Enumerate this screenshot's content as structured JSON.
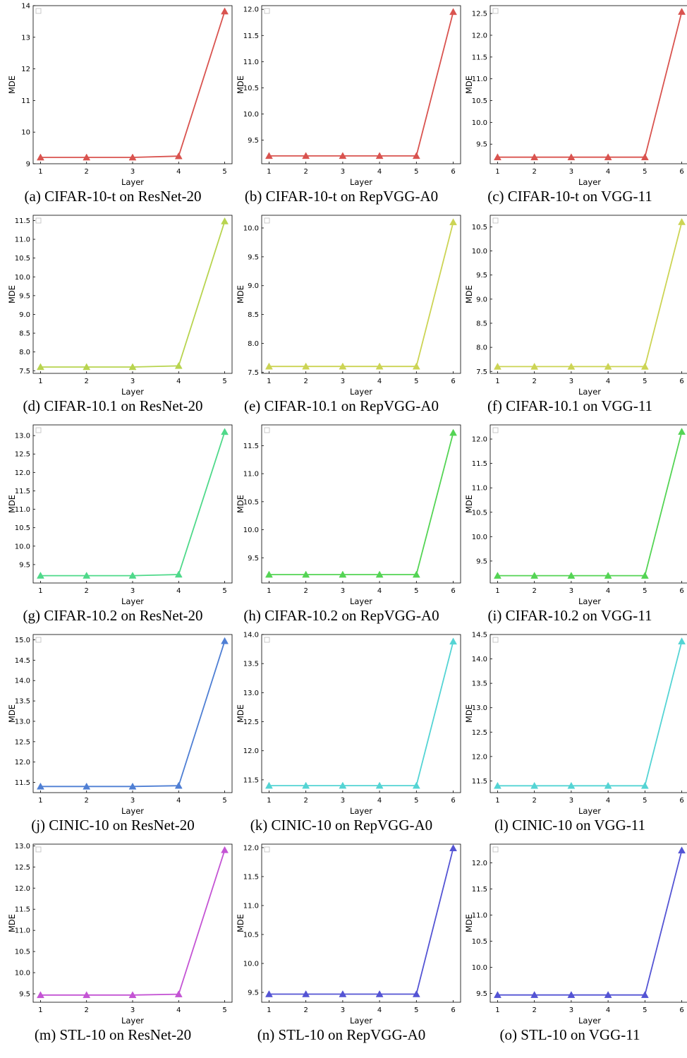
{
  "charts": [
    {
      "caption": "(a) CIFAR-10-t on ResNet-20",
      "ylabel": "MDE",
      "xlabel": "Layer",
      "color": "#d9534f",
      "chart_data": {
        "type": "line",
        "x": [
          1,
          2,
          3,
          4,
          5
        ],
        "y": [
          9.2,
          9.2,
          9.2,
          9.24,
          13.82
        ],
        "ylim": [
          9,
          14
        ],
        "yticks": [
          "9",
          "10",
          "11",
          "12",
          "13",
          "14"
        ]
      }
    },
    {
      "caption": "(b) CIFAR-10-t on RepVGG-A0",
      "ylabel": "MDE",
      "xlabel": "Layer",
      "color": "#d9534f",
      "chart_data": {
        "type": "line",
        "x": [
          1,
          2,
          3,
          4,
          5,
          6
        ],
        "y": [
          9.2,
          9.2,
          9.2,
          9.2,
          9.2,
          11.95
        ],
        "ylim": [
          9.05,
          12.07
        ],
        "yticks": [
          "9.5",
          "10.0",
          "10.5",
          "11.0",
          "11.5",
          "12.0"
        ]
      }
    },
    {
      "caption": "(c) CIFAR-10-t on VGG-11",
      "ylabel": "MDE",
      "xlabel": "Layer",
      "color": "#d9534f",
      "chart_data": {
        "type": "line",
        "x": [
          1,
          2,
          3,
          4,
          5,
          6
        ],
        "y": [
          9.2,
          9.2,
          9.2,
          9.2,
          9.2,
          12.54
        ],
        "ylim": [
          9.05,
          12.68
        ],
        "yticks": [
          "9.5",
          "10.0",
          "10.5",
          "11.0",
          "11.5",
          "12.0",
          "12.5"
        ]
      }
    },
    {
      "caption": "(d) CIFAR-10.1 on ResNet-20",
      "ylabel": "MDE",
      "xlabel": "Layer",
      "color": "#b8d44f",
      "chart_data": {
        "type": "line",
        "x": [
          1,
          2,
          3,
          4,
          5
        ],
        "y": [
          7.6,
          7.6,
          7.6,
          7.63,
          11.48
        ],
        "ylim": [
          7.43,
          11.64
        ],
        "yticks": [
          "7.5",
          "8.0",
          "8.5",
          "9.0",
          "9.5",
          "10.0",
          "10.5",
          "11.0",
          "11.5"
        ]
      }
    },
    {
      "caption": "(e) CIFAR-10.1 on RepVGG-A0",
      "ylabel": "MDE",
      "xlabel": "Layer",
      "color": "#ccd454",
      "chart_data": {
        "type": "line",
        "x": [
          1,
          2,
          3,
          4,
          5,
          6
        ],
        "y": [
          7.6,
          7.6,
          7.6,
          7.6,
          7.6,
          10.1
        ],
        "ylim": [
          7.48,
          10.22
        ],
        "yticks": [
          "7.5",
          "8.0",
          "8.5",
          "9.0",
          "9.5",
          "10.0"
        ]
      }
    },
    {
      "caption": "(f) CIFAR-10.1 on VGG-11",
      "ylabel": "MDE",
      "xlabel": "Layer",
      "color": "#ccd454",
      "chart_data": {
        "type": "line",
        "x": [
          1,
          2,
          3,
          4,
          5,
          6
        ],
        "y": [
          7.6,
          7.6,
          7.6,
          7.6,
          7.6,
          10.6
        ],
        "ylim": [
          7.46,
          10.74
        ],
        "yticks": [
          "7.5",
          "8.0",
          "8.5",
          "9.0",
          "9.5",
          "10.0",
          "10.5"
        ]
      }
    },
    {
      "caption": "(g) CIFAR-10.2 on ResNet-20",
      "ylabel": "MDE",
      "xlabel": "Layer",
      "color": "#4fd98a",
      "chart_data": {
        "type": "line",
        "x": [
          1,
          2,
          3,
          4,
          5
        ],
        "y": [
          9.2,
          9.2,
          9.2,
          9.23,
          13.1
        ],
        "ylim": [
          9.0,
          13.29
        ],
        "yticks": [
          "9.5",
          "10.0",
          "10.5",
          "11.0",
          "11.5",
          "12.0",
          "12.5",
          "13.0"
        ]
      }
    },
    {
      "caption": "(h) CIFAR-10.2 on RepVGG-A0",
      "ylabel": "MDE",
      "xlabel": "Layer",
      "color": "#54d454",
      "chart_data": {
        "type": "line",
        "x": [
          1,
          2,
          3,
          4,
          5,
          6
        ],
        "y": [
          9.2,
          9.2,
          9.2,
          9.2,
          9.2,
          11.73
        ],
        "ylim": [
          9.05,
          11.87
        ],
        "yticks": [
          "9.5",
          "10.0",
          "10.5",
          "11.0",
          "11.5"
        ]
      }
    },
    {
      "caption": "(i) CIFAR-10.2 on VGG-11",
      "ylabel": "MDE",
      "xlabel": "Layer",
      "color": "#54d454",
      "chart_data": {
        "type": "line",
        "x": [
          1,
          2,
          3,
          4,
          5,
          6
        ],
        "y": [
          9.2,
          9.2,
          9.2,
          9.2,
          9.2,
          12.15
        ],
        "ylim": [
          9.05,
          12.29
        ],
        "yticks": [
          "9.5",
          "10.0",
          "10.5",
          "11.0",
          "11.5",
          "12.0"
        ]
      }
    },
    {
      "caption": "(j) CINIC-10 on ResNet-20",
      "ylabel": "MDE",
      "xlabel": "Layer",
      "color": "#4f7fd4",
      "chart_data": {
        "type": "line",
        "x": [
          1,
          2,
          3,
          4,
          5
        ],
        "y": [
          11.4,
          11.4,
          11.4,
          11.42,
          14.97
        ],
        "ylim": [
          11.25,
          15.13
        ],
        "yticks": [
          "11.5",
          "12.0",
          "12.5",
          "13.0",
          "13.5",
          "14.0",
          "14.5",
          "15.0"
        ]
      }
    },
    {
      "caption": "(k) CINIC-10 on RepVGG-A0",
      "ylabel": "MDE",
      "xlabel": "Layer",
      "color": "#54d4d4",
      "chart_data": {
        "type": "line",
        "x": [
          1,
          2,
          3,
          4,
          5,
          6
        ],
        "y": [
          11.4,
          11.4,
          11.4,
          11.4,
          11.4,
          13.88
        ],
        "ylim": [
          11.28,
          14.0
        ],
        "yticks": [
          "11.5",
          "12.0",
          "12.5",
          "13.0",
          "13.5",
          "14.0"
        ]
      }
    },
    {
      "caption": "(l) CINIC-10 on VGG-11",
      "ylabel": "MDE",
      "xlabel": "Layer",
      "color": "#54d4d4",
      "chart_data": {
        "type": "line",
        "x": [
          1,
          2,
          3,
          4,
          5,
          6
        ],
        "y": [
          11.4,
          11.4,
          11.4,
          11.4,
          11.4,
          14.36
        ],
        "ylim": [
          11.26,
          14.5
        ],
        "yticks": [
          "11.5",
          "12.0",
          "12.5",
          "13.0",
          "13.5",
          "14.0",
          "14.5"
        ]
      }
    },
    {
      "caption": "(m) STL-10 on ResNet-20",
      "ylabel": "MDE",
      "xlabel": "Layer",
      "color": "#c454d4",
      "chart_data": {
        "type": "line",
        "x": [
          1,
          2,
          3,
          4,
          5
        ],
        "y": [
          9.47,
          9.47,
          9.47,
          9.49,
          12.9
        ],
        "ylim": [
          9.3,
          13.04
        ],
        "yticks": [
          "9.5",
          "10.0",
          "10.5",
          "11.0",
          "11.5",
          "12.0",
          "12.5",
          "13.0"
        ]
      }
    },
    {
      "caption": "(n) STL-10 on RepVGG-A0",
      "ylabel": "MDE",
      "xlabel": "Layer",
      "color": "#5454d4",
      "chart_data": {
        "type": "line",
        "x": [
          1,
          2,
          3,
          4,
          5,
          6
        ],
        "y": [
          9.47,
          9.47,
          9.47,
          9.47,
          9.47,
          11.99
        ],
        "ylim": [
          9.33,
          12.06
        ],
        "yticks": [
          "9.5",
          "10.0",
          "10.5",
          "11.0",
          "11.5",
          "12.0"
        ]
      }
    },
    {
      "caption": "(o) STL-10 on VGG-11",
      "ylabel": "MDE",
      "xlabel": "Layer",
      "color": "#5454d4",
      "chart_data": {
        "type": "line",
        "x": [
          1,
          2,
          3,
          4,
          5,
          6
        ],
        "y": [
          9.47,
          9.47,
          9.47,
          9.47,
          9.47,
          12.24
        ],
        "ylim": [
          9.33,
          12.36
        ],
        "yticks": [
          "9.5",
          "10.0",
          "10.5",
          "11.0",
          "11.5",
          "12.0"
        ]
      }
    }
  ]
}
